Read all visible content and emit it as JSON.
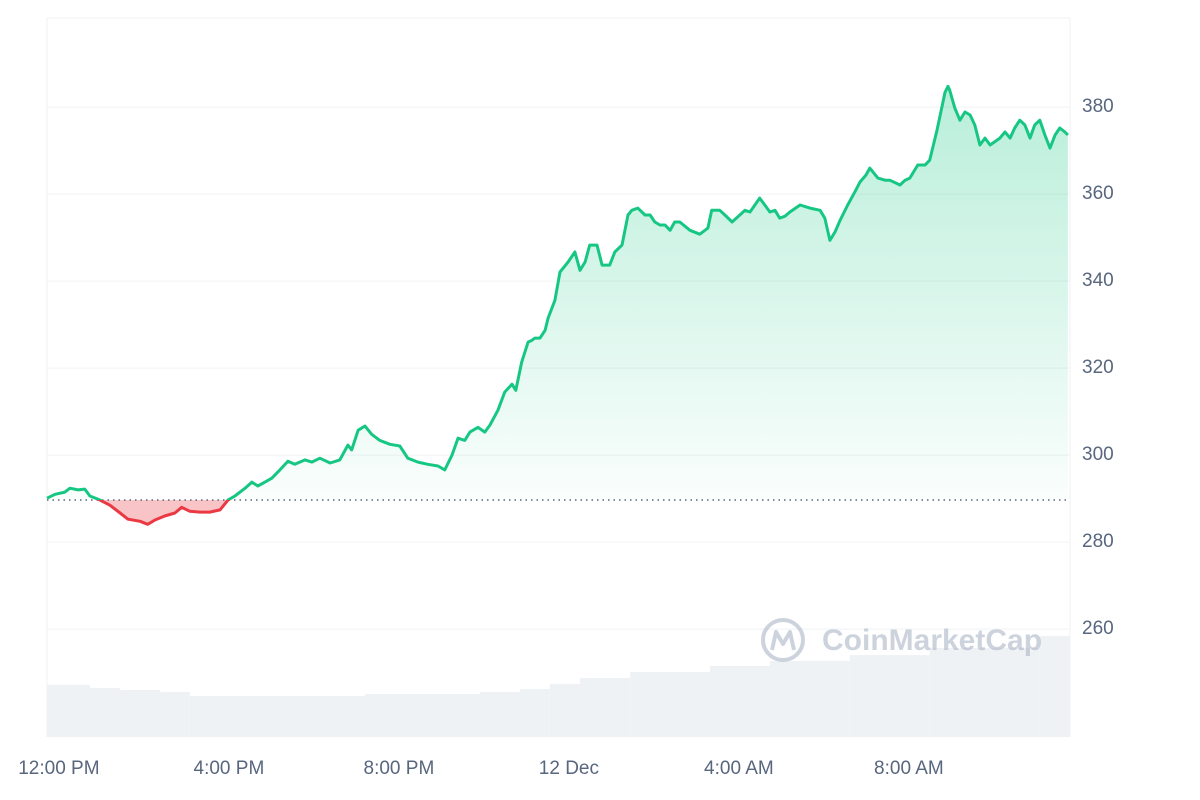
{
  "chart_data": {
    "type": "line",
    "x": [
      -0.28,
      -0.09,
      0.14,
      0.26,
      0.45,
      0.61,
      0.73,
      0.96,
      1.2,
      1.44,
      1.62,
      1.91,
      2.09,
      2.26,
      2.49,
      2.73,
      2.89,
      3.08,
      3.32,
      3.55,
      3.79,
      3.98,
      4.14,
      4.38,
      4.54,
      4.68,
      4.85,
      5.01,
      5.2,
      5.39,
      5.55,
      5.79,
      5.95,
      6.14,
      6.38,
      6.61,
      6.8,
      6.89,
      7.04,
      7.2,
      7.36,
      7.55,
      7.79,
      8.02,
      8.21,
      8.45,
      8.68,
      8.92,
      9.08,
      9.25,
      9.39,
      9.55,
      9.67,
      9.86,
      10.02,
      10.14,
      10.33,
      10.49,
      10.66,
      10.75,
      10.89,
      11.04,
      11.13,
      11.2,
      11.32,
      11.44,
      11.51,
      11.67,
      11.79,
      11.98,
      12.14,
      12.26,
      12.38,
      12.49,
      12.66,
      12.78,
      12.96,
      13.08,
      13.25,
      13.39,
      13.48,
      13.62,
      13.79,
      13.91,
      14.02,
      14.14,
      14.26,
      14.38,
      14.49,
      14.61,
      14.85,
      15.08,
      15.27,
      15.36,
      15.55,
      15.67,
      15.84,
      16.02,
      16.14,
      16.26,
      16.49,
      16.61,
      16.73,
      16.85,
      16.96,
      17.08,
      17.2,
      17.44,
      17.67,
      17.91,
      18.02,
      18.14,
      18.26,
      18.38,
      18.56,
      18.75,
      18.85,
      18.99,
      19.08,
      19.27,
      19.44,
      19.55,
      19.79,
      19.91,
      20.02,
      20.21,
      20.38,
      20.49,
      20.66,
      20.85,
      20.92,
      20.96,
      21.08,
      21.2,
      21.32,
      21.44,
      21.55,
      21.67,
      21.79,
      21.91,
      22.14,
      22.26,
      22.38,
      22.49,
      22.61,
      22.73,
      22.85,
      22.96,
      23.08,
      23.2,
      23.32,
      23.44,
      23.55,
      23.67,
      23.74
    ],
    "values": [
      290.1,
      291.0,
      291.5,
      292.4,
      292.0,
      292.2,
      290.6,
      289.7,
      288.5,
      286.7,
      285.3,
      284.8,
      284.1,
      285.1,
      286.0,
      286.7,
      288.0,
      287.1,
      286.9,
      286.9,
      287.4,
      289.7,
      290.6,
      292.4,
      293.8,
      292.9,
      293.8,
      294.7,
      296.6,
      298.6,
      297.9,
      298.9,
      298.4,
      299.3,
      298.2,
      298.9,
      302.3,
      301.2,
      305.7,
      306.7,
      304.8,
      303.4,
      302.5,
      302.1,
      299.3,
      298.4,
      297.9,
      297.5,
      296.6,
      300.0,
      303.9,
      303.4,
      305.3,
      306.4,
      305.3,
      306.9,
      310.3,
      314.5,
      316.3,
      314.9,
      321.4,
      326.0,
      326.4,
      326.9,
      326.9,
      328.7,
      331.5,
      335.6,
      342.1,
      344.4,
      346.7,
      342.5,
      344.4,
      348.3,
      348.3,
      343.7,
      343.7,
      346.7,
      348.3,
      355.2,
      356.3,
      356.8,
      355.2,
      355.2,
      353.6,
      352.9,
      352.9,
      351.7,
      353.6,
      353.6,
      351.7,
      350.8,
      352.2,
      356.3,
      356.3,
      355.2,
      353.6,
      355.2,
      356.3,
      355.9,
      359.1,
      357.5,
      355.9,
      356.3,
      354.5,
      354.9,
      355.9,
      357.5,
      356.8,
      356.3,
      354.5,
      349.4,
      351.3,
      354.0,
      357.5,
      360.9,
      362.8,
      364.4,
      366.0,
      363.7,
      363.2,
      363.2,
      362.1,
      363.2,
      363.7,
      366.7,
      366.7,
      367.8,
      374.7,
      383.4,
      384.8,
      383.9,
      379.8,
      377.0,
      378.9,
      378.2,
      375.9,
      371.3,
      372.9,
      371.3,
      372.9,
      374.3,
      372.9,
      375.2,
      377.0,
      375.9,
      372.9,
      375.9,
      377.0,
      373.6,
      370.6,
      373.6,
      375.2,
      374.3,
      373.6
    ],
    "baseline": 289.7,
    "color_up": "#16c784",
    "color_down": "#ea3943",
    "volume": {
      "x": [
        -0.28,
        0.73,
        1.44,
        2.38,
        3.08,
        7.2,
        9.91,
        10.85,
        11.55,
        12.26,
        13.44,
        15.32,
        16.73,
        18.61,
        20.49,
        23.08
      ],
      "values": [
        36.2,
        34.1,
        32.7,
        31.3,
        28.5,
        29.9,
        31.3,
        33.4,
        36.9,
        41.0,
        45.2,
        49.4,
        52.9,
        57.0,
        61.9,
        70.2
      ],
      "color": "#eff2f5",
      "axis": "y2"
    },
    "xlim": [
      -0.28,
      23.79
    ],
    "xticks": [
      {
        "value": 0,
        "label": "12:00 PM"
      },
      {
        "value": 4,
        "label": "4:00 PM"
      },
      {
        "value": 8,
        "label": "8:00 PM"
      },
      {
        "value": 12,
        "label": "12 Dec"
      },
      {
        "value": 16,
        "label": "4:00 AM"
      },
      {
        "value": 20,
        "label": "8:00 AM"
      }
    ],
    "ylim": [
      235.2,
      400.5
    ],
    "yticks": [
      260,
      280,
      300,
      320,
      340,
      360,
      380
    ],
    "y2lim": [
      0,
      500
    ],
    "grid": true,
    "watermark": "CoinMarketCap"
  }
}
